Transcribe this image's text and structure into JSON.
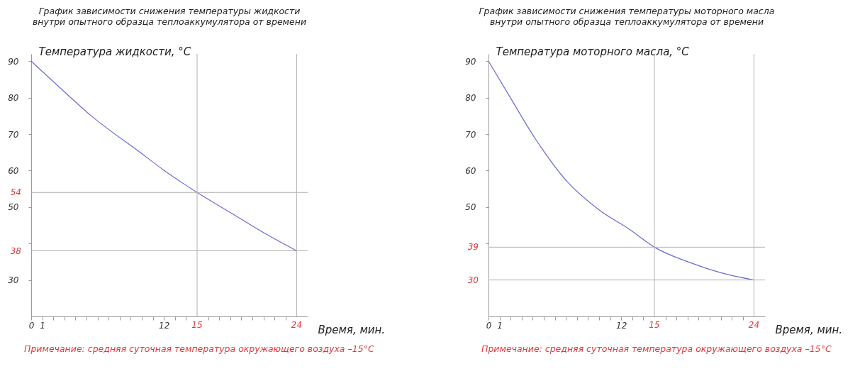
{
  "chart_data": [
    {
      "type": "line",
      "title": [
        "График зависимости снижения температуры жидкости",
        "внутри опытного образца теплоаккумулятора от времени"
      ],
      "xlabel": "Время, мин.",
      "ylabel": "Температура жидкости, °С",
      "x": [
        0,
        2.5,
        5.4,
        9.8,
        12,
        15,
        18,
        21,
        24
      ],
      "series": [
        {
          "color": "#6a6ad0",
          "values": [
            90,
            83,
            75.1,
            65.1,
            60.1,
            54,
            48.5,
            43,
            38
          ]
        }
      ],
      "xlim": [
        0,
        25
      ],
      "ylim": [
        20,
        92
      ],
      "xticks": [
        0,
        1,
        {
          "value": 2,
          "label": null
        },
        {
          "value": 3,
          "label": null
        },
        {
          "value": 4,
          "label": null
        },
        {
          "value": 5,
          "label": null
        },
        {
          "value": 6,
          "label": null
        },
        {
          "value": 7,
          "label": null
        },
        {
          "value": 8,
          "label": null
        },
        {
          "value": 9,
          "label": null
        },
        {
          "value": 10,
          "label": null
        },
        {
          "value": 11,
          "label": null
        },
        12,
        {
          "value": 13,
          "label": null
        },
        {
          "value": 14,
          "label": null
        },
        {
          "value": 16,
          "label": null
        },
        {
          "value": 17,
          "label": null
        },
        {
          "value": 18,
          "label": null
        },
        {
          "value": 19,
          "label": null
        },
        {
          "value": 20,
          "label": null
        },
        {
          "value": 21,
          "label": null
        },
        {
          "value": 22,
          "label": null
        },
        {
          "value": 23,
          "label": null
        }
      ],
      "yticks": [
        30,
        {
          "value": 40,
          "label": null
        },
        50,
        60,
        70,
        80,
        90
      ],
      "ref_lines": [
        {
          "axis": "y",
          "value": 54,
          "label": "54",
          "color": "#b0b0b0"
        },
        {
          "axis": "y",
          "value": 38,
          "label": "38",
          "color": "#b0b0b0"
        },
        {
          "axis": "x",
          "value": 15,
          "label": "15",
          "color": "#b0b0b0"
        },
        {
          "axis": "x",
          "value": 24,
          "label": "24",
          "color": "#b0b0b0"
        }
      ],
      "annotations": [
        "Примечание: средняя суточная температура окружающего  воздуха –15°С"
      ],
      "grid": false,
      "line_style": "solid"
    },
    {
      "type": "line",
      "title": [
        "График зависимости снижения температуры моторного масла",
        "внутри опытного образца теплоаккумулятора от времени"
      ],
      "xlabel": "Время, мин.",
      "ylabel": "Температура моторного масла, °С",
      "x": [
        0,
        1.9,
        4.2,
        6.9,
        10.1,
        12.7,
        15,
        18,
        21,
        24
      ],
      "series": [
        {
          "color": "#6a6ad0",
          "values": [
            90,
            80.4,
            68.9,
            57.7,
            49,
            44,
            39,
            35,
            32,
            30
          ]
        }
      ],
      "xlim": [
        0,
        25
      ],
      "ylim": [
        20,
        92
      ],
      "xticks": [
        0,
        1,
        {
          "value": 2,
          "label": null
        },
        {
          "value": 3,
          "label": null
        },
        {
          "value": 4,
          "label": null
        },
        {
          "value": 5,
          "label": null
        },
        {
          "value": 6,
          "label": null
        },
        {
          "value": 7,
          "label": null
        },
        {
          "value": 8,
          "label": null
        },
        {
          "value": 9,
          "label": null
        },
        {
          "value": 10,
          "label": null
        },
        {
          "value": 11,
          "label": null
        },
        12,
        {
          "value": 13,
          "label": null
        },
        {
          "value": 14,
          "label": null
        },
        {
          "value": 16,
          "label": null
        },
        {
          "value": 17,
          "label": null
        },
        {
          "value": 18,
          "label": null
        },
        {
          "value": 19,
          "label": null
        },
        {
          "value": 20,
          "label": null
        },
        {
          "value": 21,
          "label": null
        },
        {
          "value": 22,
          "label": null
        },
        {
          "value": 23,
          "label": null
        }
      ],
      "yticks": [
        {
          "value": 40,
          "label": null
        },
        50,
        60,
        70,
        80,
        90
      ],
      "ref_lines": [
        {
          "axis": "y",
          "value": 39,
          "label": "39",
          "color": "#b0b0b0"
        },
        {
          "axis": "y",
          "value": 30,
          "label": "30",
          "color": "#b0b0b0"
        },
        {
          "axis": "x",
          "value": 15,
          "label": "15",
          "color": "#b0b0b0"
        },
        {
          "axis": "x",
          "value": 24,
          "label": "24",
          "color": "#b0b0b0"
        }
      ],
      "annotations": [
        "Примечание: средняя суточная температура окружающего  воздуха –15°С"
      ],
      "grid": false,
      "line_style": "solid"
    }
  ]
}
